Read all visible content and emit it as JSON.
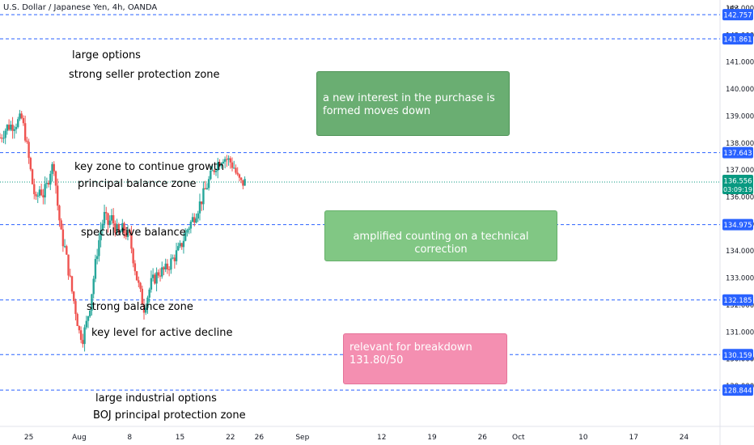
{
  "chart_data": {
    "type": "candlestick",
    "title": "U.S. Dollar / Japanese Yen, 4h, OANDA",
    "currency": "JPY",
    "ylim": [
      127.5,
      143.3
    ],
    "y_ticks": [
      "143.000",
      "142.000",
      "141.000",
      "140.000",
      "139.000",
      "138.000",
      "137.000",
      "136.000",
      "135.000",
      "134.000",
      "133.000",
      "132.000",
      "131.000",
      "130.000",
      "129.000"
    ],
    "x_ticks": [
      {
        "label": "25",
        "x": 0
      },
      {
        "label": "Aug",
        "x": 7
      },
      {
        "label": "8",
        "x": 14
      },
      {
        "label": "15",
        "x": 21
      },
      {
        "label": "22",
        "x": 28
      },
      {
        "label": "26",
        "x": 32
      },
      {
        "label": "Sep",
        "x": 38
      },
      {
        "label": "12",
        "x": 49
      },
      {
        "label": "19",
        "x": 56
      },
      {
        "label": "26",
        "x": 63
      },
      {
        "label": "Oct",
        "x": 68
      },
      {
        "label": "10",
        "x": 77
      },
      {
        "label": "17",
        "x": 84
      },
      {
        "label": "24",
        "x": 91
      }
    ],
    "xlim": [
      -4,
      96
    ],
    "current_price": {
      "value": "136.556",
      "countdown": "03:09:19"
    },
    "levels": [
      {
        "value": 142.757,
        "label": "142.757"
      },
      {
        "value": 141.861,
        "label": "141.861"
      },
      {
        "value": 137.643,
        "label": "137.643"
      },
      {
        "value": 134.975,
        "label": "134.975"
      },
      {
        "value": 132.185,
        "label": "132.185"
      },
      {
        "value": 130.159,
        "label": "130.159"
      },
      {
        "value": 128.844,
        "label": "128.844"
      }
    ],
    "path": [
      [
        -4,
        138.2
      ],
      [
        -3,
        138.6
      ],
      [
        -2,
        138.7
      ],
      [
        -1,
        138.9
      ],
      [
        -0.5,
        138.3
      ],
      [
        0,
        137.4
      ],
      [
        0.5,
        136.5
      ],
      [
        1,
        135.8
      ],
      [
        1.5,
        136.3
      ],
      [
        2,
        136.1
      ],
      [
        2.5,
        136.4
      ],
      [
        3,
        137.0
      ],
      [
        3.5,
        137.2
      ],
      [
        4,
        135.7
      ],
      [
        4.5,
        134.6
      ],
      [
        5,
        134.1
      ],
      [
        5.5,
        133.3
      ],
      [
        6,
        132.5
      ],
      [
        6.5,
        131.8
      ],
      [
        7,
        131.0
      ],
      [
        7.5,
        130.8
      ],
      [
        8,
        131.3
      ],
      [
        8.5,
        132.0
      ],
      [
        9,
        133.0
      ],
      [
        9.5,
        134.0
      ],
      [
        10,
        134.8
      ],
      [
        10.5,
        135.3
      ],
      [
        11,
        135.0
      ],
      [
        11.5,
        135.2
      ],
      [
        12,
        134.9
      ],
      [
        12.5,
        134.6
      ],
      [
        13,
        134.8
      ],
      [
        14,
        134.5
      ],
      [
        15,
        133.0
      ],
      [
        15.5,
        132.4
      ],
      [
        16,
        131.9
      ],
      [
        17,
        132.8
      ],
      [
        18,
        133.2
      ],
      [
        19,
        133.3
      ],
      [
        20,
        133.7
      ],
      [
        21,
        134.1
      ],
      [
        22,
        134.8
      ],
      [
        23,
        135.3
      ],
      [
        24,
        135.9
      ],
      [
        25,
        136.6
      ],
      [
        26,
        137.2
      ],
      [
        27,
        137.5
      ],
      [
        28,
        137.3
      ],
      [
        28.5,
        137.1
      ],
      [
        29,
        136.7
      ],
      [
        29.5,
        136.5
      ],
      [
        30,
        136.556
      ]
    ],
    "labels": [
      {
        "text": "large options"
      },
      {
        "text": "strong seller protection zone"
      },
      {
        "text": "key zone to continue growth"
      },
      {
        "text": "principal balance zone"
      },
      {
        "text": "speculative balance"
      },
      {
        "text": "strong balance zone"
      },
      {
        "text": "key level for active decline"
      },
      {
        "text": "large industrial options"
      },
      {
        "text": "BOJ principal protection zone"
      }
    ],
    "notes": [
      {
        "text": "a new interest in the purchase is formed moves down",
        "color": "#6aae72"
      },
      {
        "text": "amplified counting on a technical correction",
        "color": "#81c784"
      },
      {
        "text": "relevant for breakdown 131.80/50",
        "color": "#f48fb1"
      }
    ],
    "colors": {
      "up": "#26a69a",
      "down": "#ef5350",
      "level": "#2962ff",
      "current": "#089981"
    }
  }
}
